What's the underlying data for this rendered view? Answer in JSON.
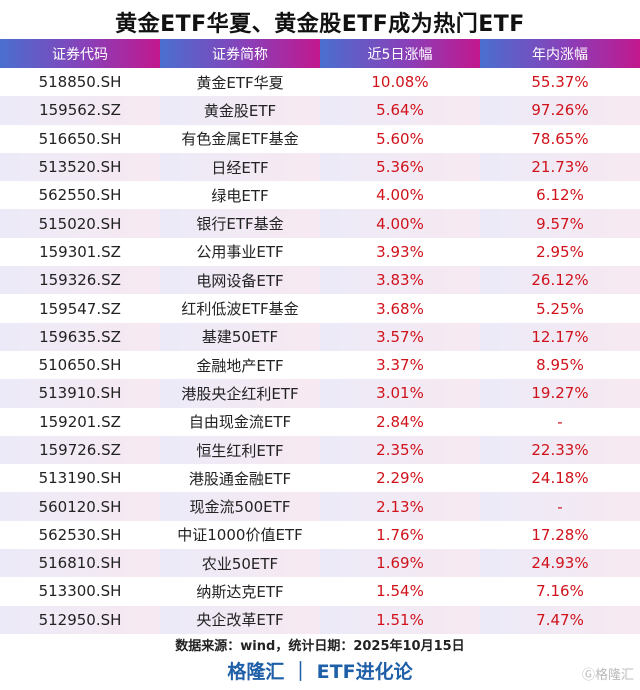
{
  "title": "黄金ETF华夏、黄金股ETF成为热门ETF",
  "chart_data": {
    "type": "table",
    "columns": [
      "证券代码",
      "证券简称",
      "近5日涨幅",
      "年内涨幅"
    ],
    "rows": [
      [
        "518850.SH",
        "黄金ETF华夏",
        "10.08%",
        "55.37%"
      ],
      [
        "159562.SZ",
        "黄金股ETF",
        "5.64%",
        "97.26%"
      ],
      [
        "516650.SH",
        "有色金属ETF基金",
        "5.60%",
        "78.65%"
      ],
      [
        "513520.SH",
        "日经ETF",
        "5.36%",
        "21.73%"
      ],
      [
        "562550.SH",
        "绿电ETF",
        "4.00%",
        "6.12%"
      ],
      [
        "515020.SH",
        "银行ETF基金",
        "4.00%",
        "9.57%"
      ],
      [
        "159301.SZ",
        "公用事业ETF",
        "3.93%",
        "2.95%"
      ],
      [
        "159326.SZ",
        "电网设备ETF",
        "3.83%",
        "26.12%"
      ],
      [
        "159547.SZ",
        "红利低波ETF基金",
        "3.68%",
        "5.25%"
      ],
      [
        "159635.SZ",
        "基建50ETF",
        "3.57%",
        "12.17%"
      ],
      [
        "510650.SH",
        "金融地产ETF",
        "3.37%",
        "8.95%"
      ],
      [
        "513910.SH",
        "港股央企红利ETF",
        "3.01%",
        "19.27%"
      ],
      [
        "159201.SZ",
        "自由现金流ETF",
        "2.84%",
        "-"
      ],
      [
        "159726.SZ",
        "恒生红利ETF",
        "2.35%",
        "22.33%"
      ],
      [
        "513190.SH",
        "港股通金融ETF",
        "2.29%",
        "24.18%"
      ],
      [
        "560120.SH",
        "现金流500ETF",
        "2.13%",
        "-"
      ],
      [
        "562530.SH",
        "中证1000价值ETF",
        "1.76%",
        "17.28%"
      ],
      [
        "516810.SH",
        "农业50ETF",
        "1.69%",
        "24.93%"
      ],
      [
        "513300.SH",
        "纳斯达克ETF",
        "1.54%",
        "7.16%"
      ],
      [
        "512950.SH",
        "央企改革ETF",
        "1.51%",
        "7.47%"
      ]
    ]
  },
  "source": "数据来源：wind，统计日期：2025年10月15日",
  "brand": "格隆汇 ｜ ETF进化论",
  "watermark": "格隆汇",
  "colors": {
    "header_start": "#4a6fcf",
    "header_end": "#c2188d",
    "value": "#d0121b",
    "brand": "#1f5fa8"
  }
}
